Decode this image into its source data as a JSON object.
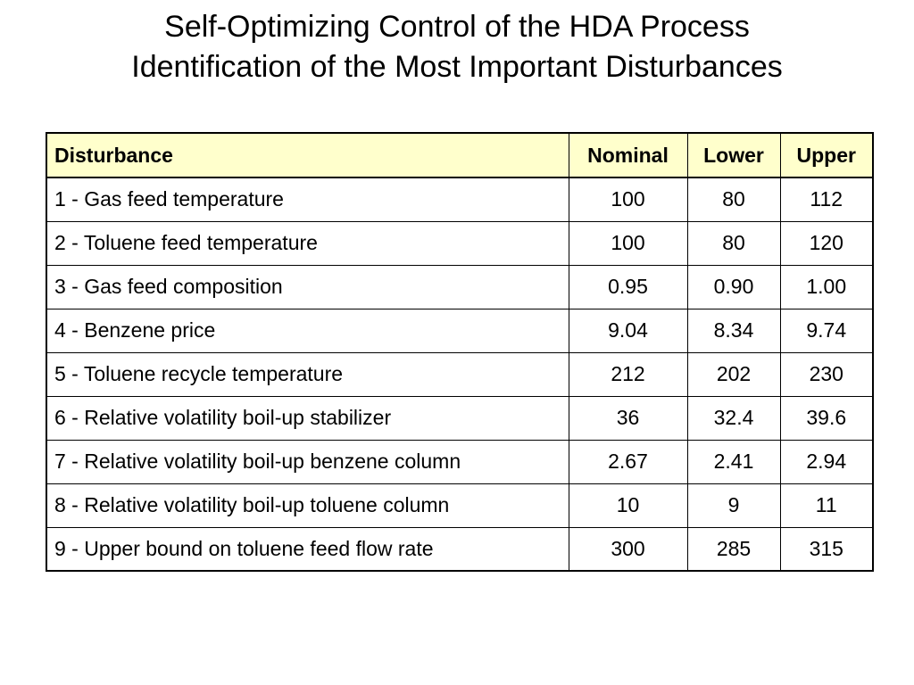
{
  "title": {
    "line1": "Self-Optimizing Control of the HDA Process",
    "line2": "Identification of the Most Important Disturbances"
  },
  "table": {
    "headers": [
      "Disturbance",
      "Nominal",
      "Lower",
      "Upper"
    ],
    "rows": [
      [
        "1 - Gas feed temperature",
        "100",
        "80",
        "112"
      ],
      [
        "2 - Toluene feed temperature",
        "100",
        "80",
        "120"
      ],
      [
        "3 - Gas feed composition",
        "0.95",
        "0.90",
        "1.00"
      ],
      [
        "4 - Benzene price",
        "9.04",
        "8.34",
        "9.74"
      ],
      [
        "5 - Toluene recycle temperature",
        "212",
        "202",
        "230"
      ],
      [
        "6 - Relative volatility boil-up stabilizer",
        "36",
        "32.4",
        "39.6"
      ],
      [
        "7 - Relative volatility boil-up benzene column",
        "2.67",
        "2.41",
        "2.94"
      ],
      [
        "8 - Relative volatility boil-up toluene column",
        "10",
        "9",
        "11"
      ],
      [
        "9 - Upper bound on toluene feed flow rate",
        "300",
        "285",
        "315"
      ]
    ]
  },
  "colors": {
    "header_background": "#ffffcc",
    "border": "#000000",
    "text": "#000000"
  }
}
